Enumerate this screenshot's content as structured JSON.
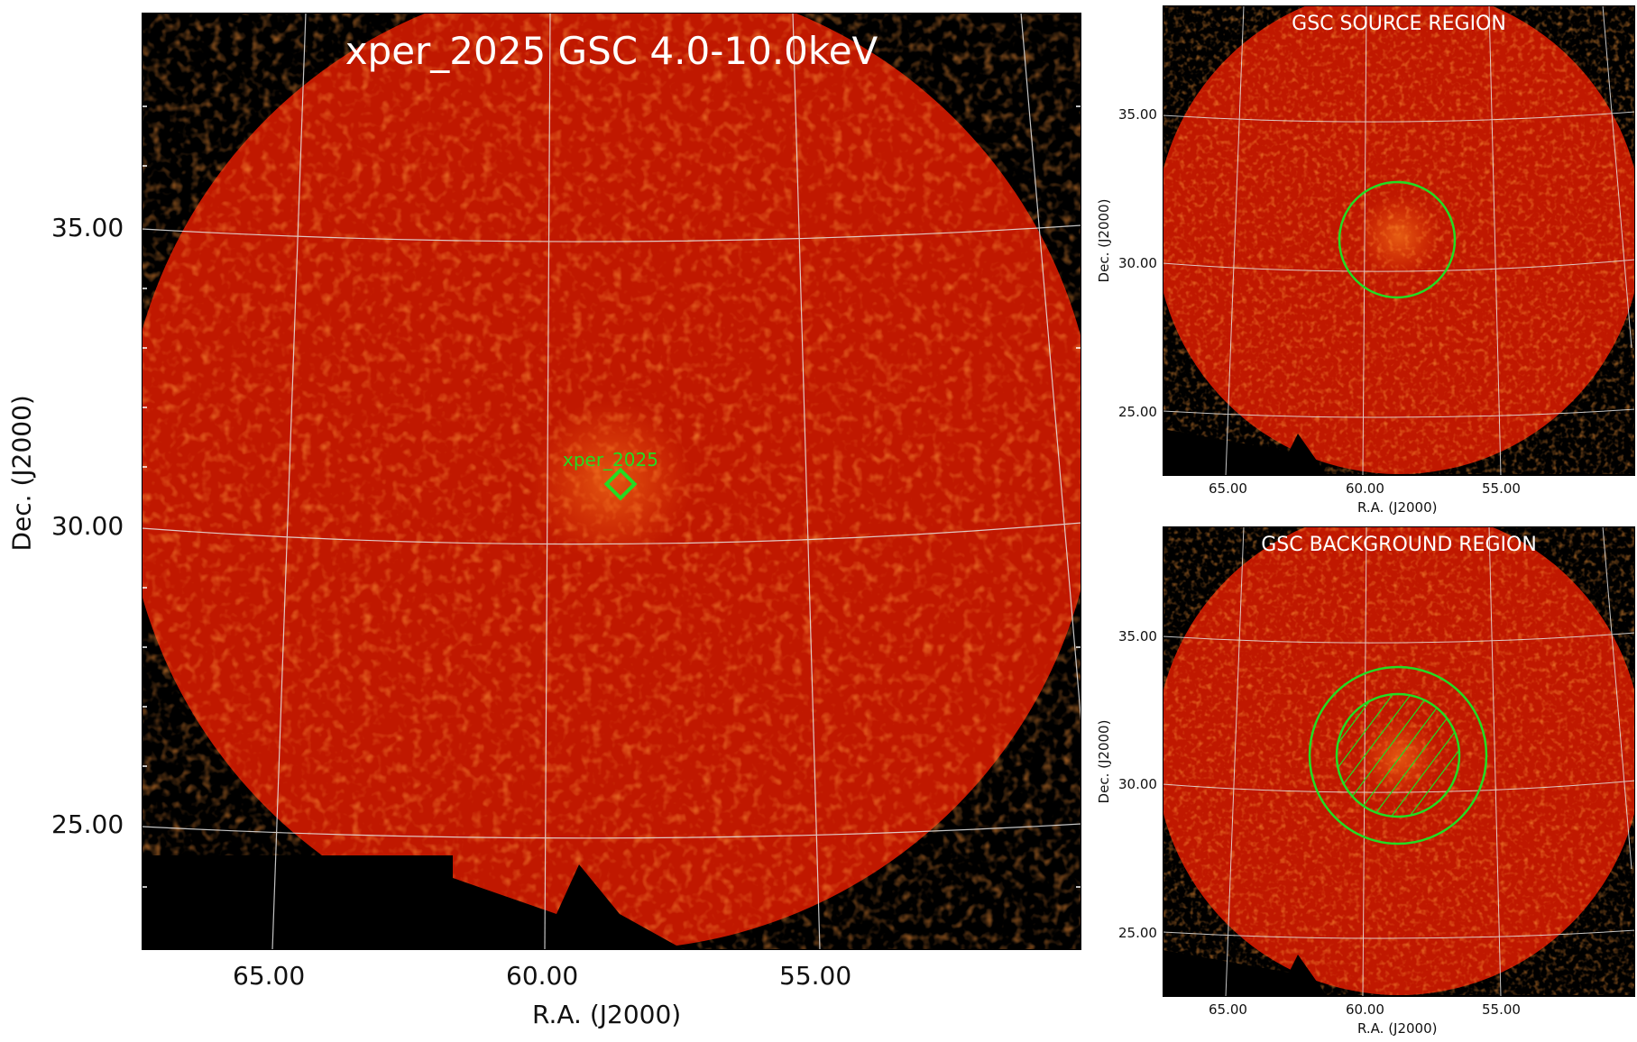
{
  "main_panel": {
    "title": "xper_2025 GSC 4.0-10.0keV",
    "source_label": "xper_2025",
    "xlabel": "R.A. (J2000)",
    "ylabel": "Dec. (J2000)",
    "x_ticks": [
      "65.00",
      "60.00",
      "55.00"
    ],
    "y_ticks": [
      "35.00",
      "30.00",
      "25.00"
    ]
  },
  "source_panel": {
    "title": "GSC SOURCE REGION",
    "xlabel": "R.A. (J2000)",
    "ylabel": "Dec. (J2000)",
    "x_ticks": [
      "65.00",
      "60.00",
      "55.00"
    ],
    "y_ticks": [
      "35.00",
      "30.00",
      "25.00"
    ]
  },
  "background_panel": {
    "title": "GSC BACKGROUND REGION",
    "xlabel": "R.A. (J2000)",
    "ylabel": "Dec. (J2000)",
    "x_ticks": [
      "65.00",
      "60.00",
      "55.00"
    ],
    "y_ticks": [
      "35.00",
      "30.00",
      "25.00"
    ]
  },
  "colors": {
    "image_base": "#c01800",
    "image_bright": "#ff6a10",
    "region": "#22dd22",
    "grid": "#e6e6e6",
    "background": "#000000"
  }
}
